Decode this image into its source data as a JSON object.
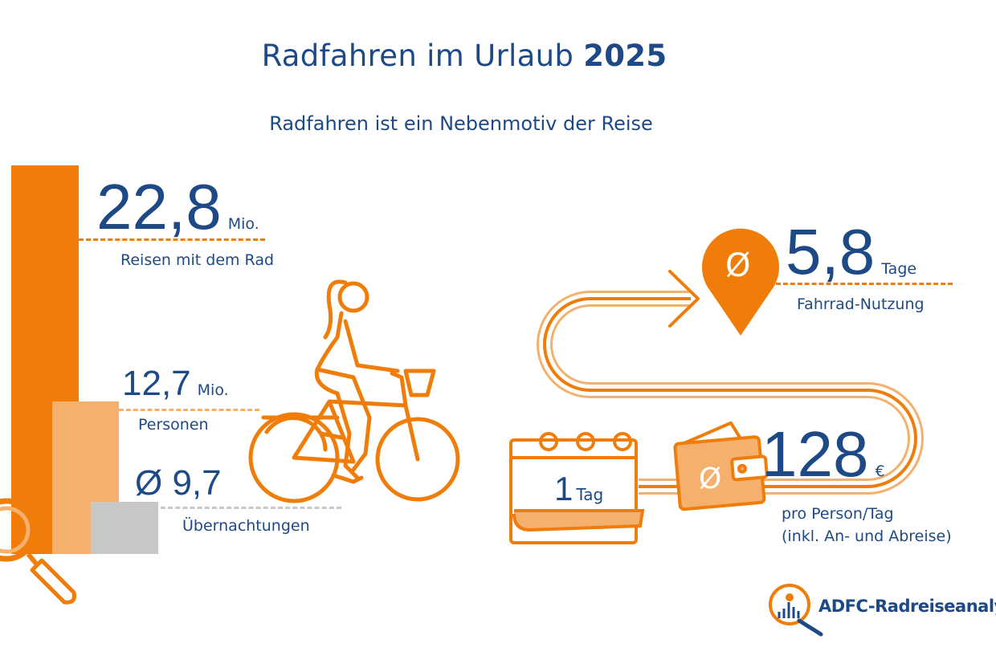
{
  "header": {
    "title_main": "Radfahren im Urlaub ",
    "title_year": "2025",
    "subtitle": "Radfahren ist ein Nebenmotiv der Reise"
  },
  "stats": {
    "trips": {
      "value": "22,8",
      "unit": "Mio.",
      "label": "Reisen mit dem Rad"
    },
    "persons": {
      "value": "12,7",
      "unit": "Mio.",
      "label": "Personen"
    },
    "nights": {
      "value": "Ø 9,7",
      "label": "Übernachtungen"
    },
    "bike_days": {
      "symbol": "Ø",
      "value": "5,8",
      "unit": "Tage",
      "label": "Fahrrad-Nutzung"
    },
    "spending": {
      "symbol": "Ø",
      "value": "128",
      "unit": "€",
      "label_line1": "pro Person/Tag",
      "label_line2": "(inkl. An- und Abreise)"
    },
    "calendar": {
      "value": "1",
      "unit": "Tag"
    }
  },
  "bars": [
    {
      "metric": "Reisen mit dem Rad",
      "value": 22.8,
      "color": "#f07d0a"
    },
    {
      "metric": "Personen",
      "value": 12.7,
      "color": "#f5b06e"
    },
    {
      "metric": "Übernachtungen",
      "value": 9.7,
      "color": "#c8c8c8"
    }
  ],
  "logo": {
    "text": "ADFC-Radreiseanalyse"
  },
  "colors": {
    "navy": "#1d4a86",
    "orange": "#f07d0a",
    "light_orange": "#f5b06e",
    "grey": "#c8c8c8"
  }
}
